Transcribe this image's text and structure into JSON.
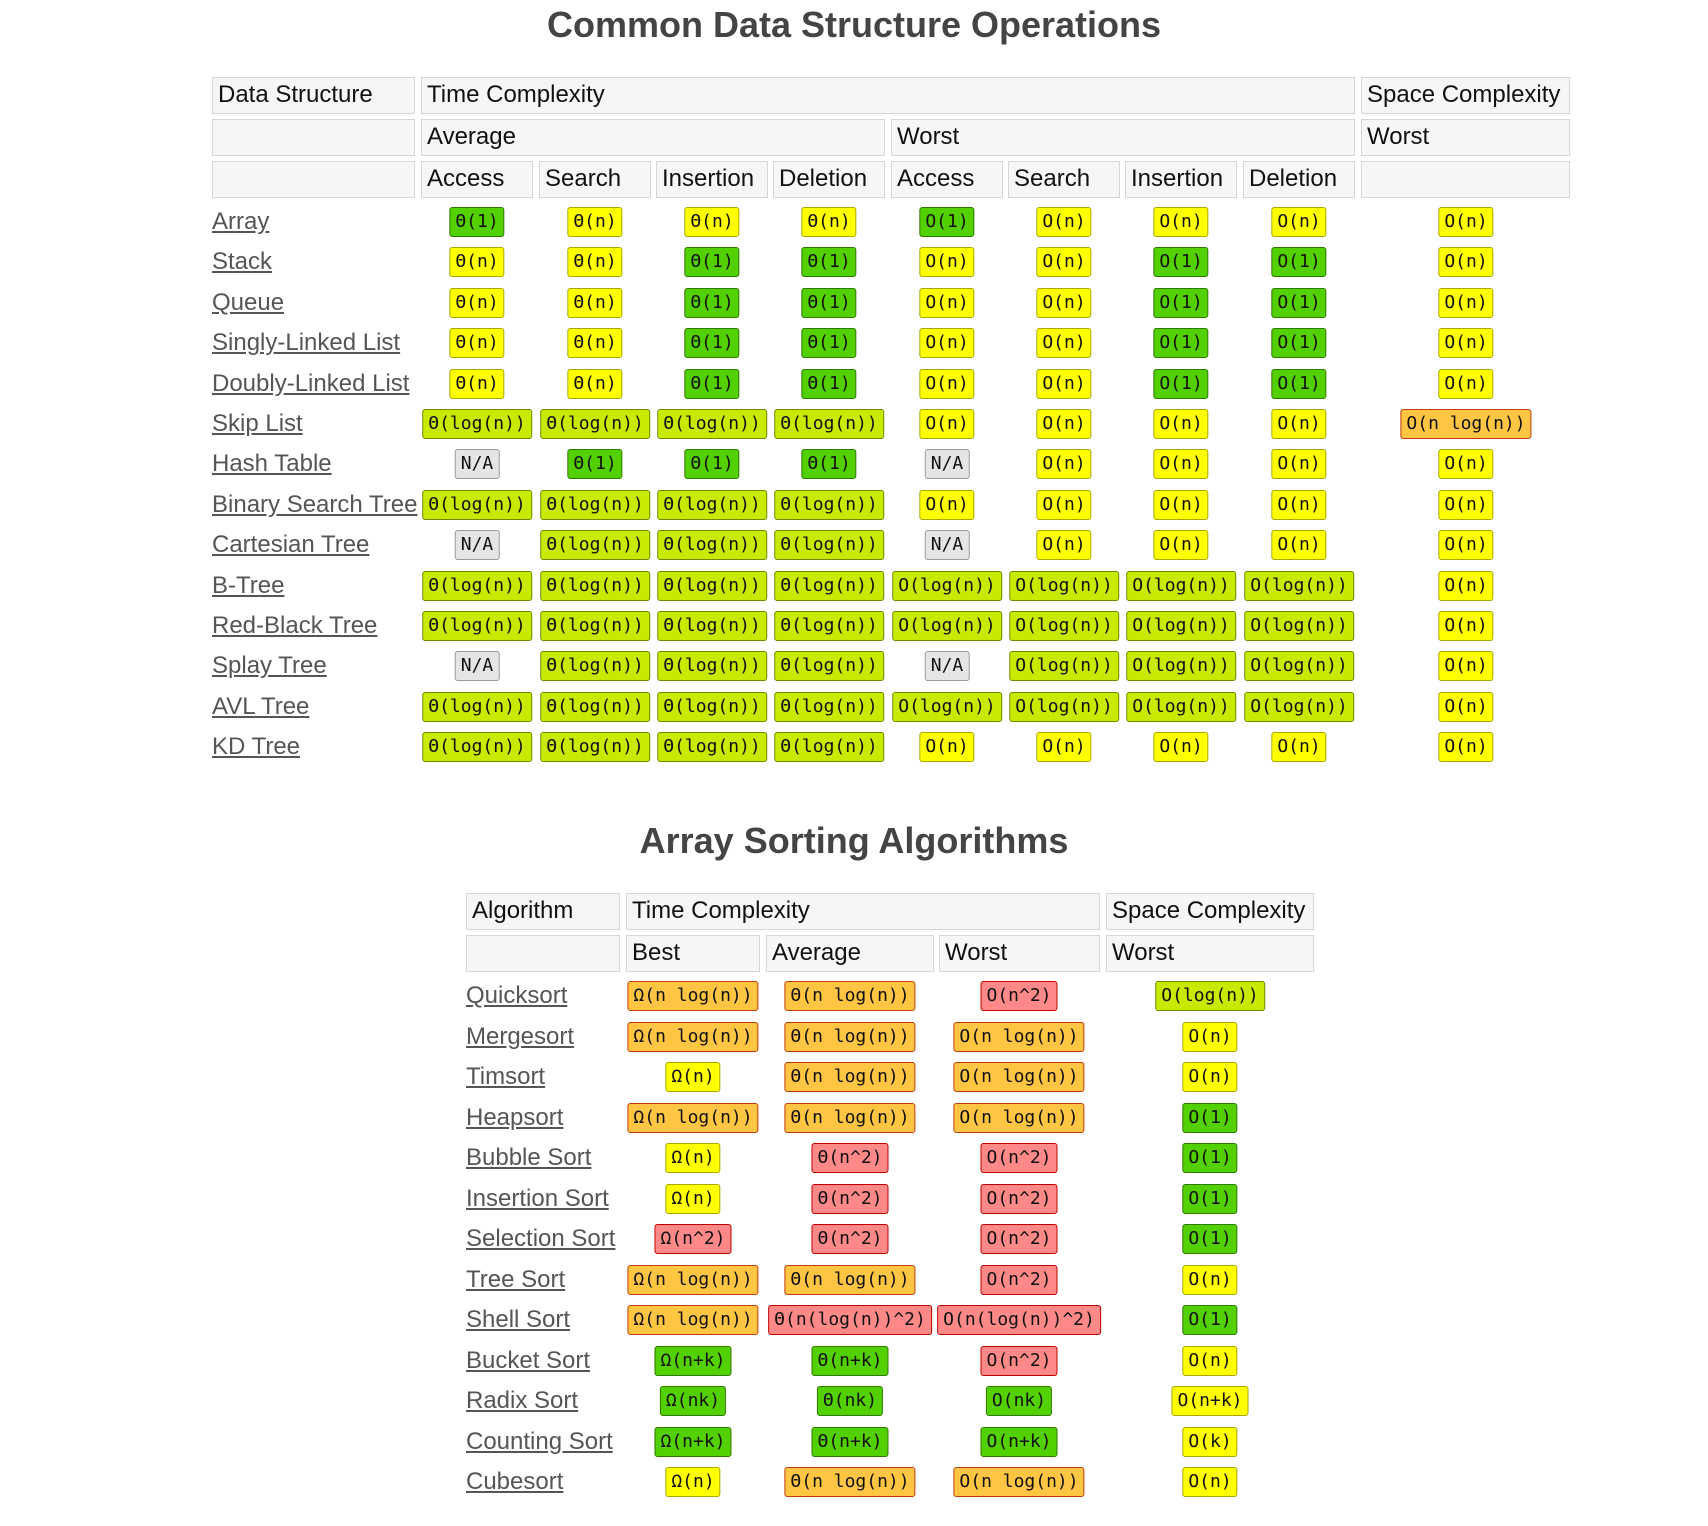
{
  "ds_table": {
    "title": "Common Data Structure Operations",
    "header": {
      "data_structure": "Data Structure",
      "time_complexity": "Time Complexity",
      "space_complexity": "Space Complexity",
      "average": "Average",
      "worst": "Worst",
      "space_worst": "Worst",
      "ops": [
        "Access",
        "Search",
        "Insertion",
        "Deletion",
        "Access",
        "Search",
        "Insertion",
        "Deletion"
      ]
    },
    "rows": [
      {
        "name": "Array",
        "cells": [
          [
            "Θ(1)",
            "good"
          ],
          [
            "Θ(n)",
            "yellow"
          ],
          [
            "Θ(n)",
            "yellow"
          ],
          [
            "Θ(n)",
            "yellow"
          ],
          [
            "O(1)",
            "good"
          ],
          [
            "O(n)",
            "yellow"
          ],
          [
            "O(n)",
            "yellow"
          ],
          [
            "O(n)",
            "yellow"
          ],
          [
            "O(n)",
            "yellow"
          ]
        ]
      },
      {
        "name": "Stack",
        "cells": [
          [
            "Θ(n)",
            "yellow"
          ],
          [
            "Θ(n)",
            "yellow"
          ],
          [
            "Θ(1)",
            "good"
          ],
          [
            "Θ(1)",
            "good"
          ],
          [
            "O(n)",
            "yellow"
          ],
          [
            "O(n)",
            "yellow"
          ],
          [
            "O(1)",
            "good"
          ],
          [
            "O(1)",
            "good"
          ],
          [
            "O(n)",
            "yellow"
          ]
        ]
      },
      {
        "name": "Queue",
        "cells": [
          [
            "Θ(n)",
            "yellow"
          ],
          [
            "Θ(n)",
            "yellow"
          ],
          [
            "Θ(1)",
            "good"
          ],
          [
            "Θ(1)",
            "good"
          ],
          [
            "O(n)",
            "yellow"
          ],
          [
            "O(n)",
            "yellow"
          ],
          [
            "O(1)",
            "good"
          ],
          [
            "O(1)",
            "good"
          ],
          [
            "O(n)",
            "yellow"
          ]
        ]
      },
      {
        "name": "Singly-Linked List",
        "cells": [
          [
            "Θ(n)",
            "yellow"
          ],
          [
            "Θ(n)",
            "yellow"
          ],
          [
            "Θ(1)",
            "good"
          ],
          [
            "Θ(1)",
            "good"
          ],
          [
            "O(n)",
            "yellow"
          ],
          [
            "O(n)",
            "yellow"
          ],
          [
            "O(1)",
            "good"
          ],
          [
            "O(1)",
            "good"
          ],
          [
            "O(n)",
            "yellow"
          ]
        ]
      },
      {
        "name": "Doubly-Linked List",
        "cells": [
          [
            "Θ(n)",
            "yellow"
          ],
          [
            "Θ(n)",
            "yellow"
          ],
          [
            "Θ(1)",
            "good"
          ],
          [
            "Θ(1)",
            "good"
          ],
          [
            "O(n)",
            "yellow"
          ],
          [
            "O(n)",
            "yellow"
          ],
          [
            "O(1)",
            "good"
          ],
          [
            "O(1)",
            "good"
          ],
          [
            "O(n)",
            "yellow"
          ]
        ]
      },
      {
        "name": "Skip List",
        "cells": [
          [
            "Θ(log(n))",
            "fair"
          ],
          [
            "Θ(log(n))",
            "fair"
          ],
          [
            "Θ(log(n))",
            "fair"
          ],
          [
            "Θ(log(n))",
            "fair"
          ],
          [
            "O(n)",
            "yellow"
          ],
          [
            "O(n)",
            "yellow"
          ],
          [
            "O(n)",
            "yellow"
          ],
          [
            "O(n)",
            "yellow"
          ],
          [
            "O(n log(n))",
            "bad"
          ]
        ]
      },
      {
        "name": "Hash Table",
        "cells": [
          [
            "N/A",
            "gray"
          ],
          [
            "Θ(1)",
            "good"
          ],
          [
            "Θ(1)",
            "good"
          ],
          [
            "Θ(1)",
            "good"
          ],
          [
            "N/A",
            "gray"
          ],
          [
            "O(n)",
            "yellow"
          ],
          [
            "O(n)",
            "yellow"
          ],
          [
            "O(n)",
            "yellow"
          ],
          [
            "O(n)",
            "yellow"
          ]
        ]
      },
      {
        "name": "Binary Search Tree",
        "cells": [
          [
            "Θ(log(n))",
            "fair"
          ],
          [
            "Θ(log(n))",
            "fair"
          ],
          [
            "Θ(log(n))",
            "fair"
          ],
          [
            "Θ(log(n))",
            "fair"
          ],
          [
            "O(n)",
            "yellow"
          ],
          [
            "O(n)",
            "yellow"
          ],
          [
            "O(n)",
            "yellow"
          ],
          [
            "O(n)",
            "yellow"
          ],
          [
            "O(n)",
            "yellow"
          ]
        ]
      },
      {
        "name": "Cartesian Tree",
        "cells": [
          [
            "N/A",
            "gray"
          ],
          [
            "Θ(log(n))",
            "fair"
          ],
          [
            "Θ(log(n))",
            "fair"
          ],
          [
            "Θ(log(n))",
            "fair"
          ],
          [
            "N/A",
            "gray"
          ],
          [
            "O(n)",
            "yellow"
          ],
          [
            "O(n)",
            "yellow"
          ],
          [
            "O(n)",
            "yellow"
          ],
          [
            "O(n)",
            "yellow"
          ]
        ]
      },
      {
        "name": "B-Tree",
        "cells": [
          [
            "Θ(log(n))",
            "fair"
          ],
          [
            "Θ(log(n))",
            "fair"
          ],
          [
            "Θ(log(n))",
            "fair"
          ],
          [
            "Θ(log(n))",
            "fair"
          ],
          [
            "O(log(n))",
            "fair"
          ],
          [
            "O(log(n))",
            "fair"
          ],
          [
            "O(log(n))",
            "fair"
          ],
          [
            "O(log(n))",
            "fair"
          ],
          [
            "O(n)",
            "yellow"
          ]
        ]
      },
      {
        "name": "Red-Black Tree",
        "cells": [
          [
            "Θ(log(n))",
            "fair"
          ],
          [
            "Θ(log(n))",
            "fair"
          ],
          [
            "Θ(log(n))",
            "fair"
          ],
          [
            "Θ(log(n))",
            "fair"
          ],
          [
            "O(log(n))",
            "fair"
          ],
          [
            "O(log(n))",
            "fair"
          ],
          [
            "O(log(n))",
            "fair"
          ],
          [
            "O(log(n))",
            "fair"
          ],
          [
            "O(n)",
            "yellow"
          ]
        ]
      },
      {
        "name": "Splay Tree",
        "cells": [
          [
            "N/A",
            "gray"
          ],
          [
            "Θ(log(n))",
            "fair"
          ],
          [
            "Θ(log(n))",
            "fair"
          ],
          [
            "Θ(log(n))",
            "fair"
          ],
          [
            "N/A",
            "gray"
          ],
          [
            "O(log(n))",
            "fair"
          ],
          [
            "O(log(n))",
            "fair"
          ],
          [
            "O(log(n))",
            "fair"
          ],
          [
            "O(n)",
            "yellow"
          ]
        ]
      },
      {
        "name": "AVL Tree",
        "cells": [
          [
            "Θ(log(n))",
            "fair"
          ],
          [
            "Θ(log(n))",
            "fair"
          ],
          [
            "Θ(log(n))",
            "fair"
          ],
          [
            "Θ(log(n))",
            "fair"
          ],
          [
            "O(log(n))",
            "fair"
          ],
          [
            "O(log(n))",
            "fair"
          ],
          [
            "O(log(n))",
            "fair"
          ],
          [
            "O(log(n))",
            "fair"
          ],
          [
            "O(n)",
            "yellow"
          ]
        ]
      },
      {
        "name": "KD Tree",
        "cells": [
          [
            "Θ(log(n))",
            "fair"
          ],
          [
            "Θ(log(n))",
            "fair"
          ],
          [
            "Θ(log(n))",
            "fair"
          ],
          [
            "Θ(log(n))",
            "fair"
          ],
          [
            "O(n)",
            "yellow"
          ],
          [
            "O(n)",
            "yellow"
          ],
          [
            "O(n)",
            "yellow"
          ],
          [
            "O(n)",
            "yellow"
          ],
          [
            "O(n)",
            "yellow"
          ]
        ]
      }
    ]
  },
  "sort_table": {
    "title": "Array Sorting Algorithms",
    "header": {
      "algorithm": "Algorithm",
      "time_complexity": "Time Complexity",
      "space_complexity": "Space Complexity",
      "best": "Best",
      "average": "Average",
      "worst": "Worst",
      "space_worst": "Worst"
    },
    "rows": [
      {
        "name": "Quicksort",
        "cells": [
          [
            "Ω(n log(n))",
            "bad"
          ],
          [
            "Θ(n log(n))",
            "bad"
          ],
          [
            "O(n^2)",
            "horrible"
          ],
          [
            "O(log(n))",
            "fair"
          ]
        ]
      },
      {
        "name": "Mergesort",
        "cells": [
          [
            "Ω(n log(n))",
            "bad"
          ],
          [
            "Θ(n log(n))",
            "bad"
          ],
          [
            "O(n log(n))",
            "bad"
          ],
          [
            "O(n)",
            "yellow"
          ]
        ]
      },
      {
        "name": "Timsort",
        "cells": [
          [
            "Ω(n)",
            "yellow"
          ],
          [
            "Θ(n log(n))",
            "bad"
          ],
          [
            "O(n log(n))",
            "bad"
          ],
          [
            "O(n)",
            "yellow"
          ]
        ]
      },
      {
        "name": "Heapsort",
        "cells": [
          [
            "Ω(n log(n))",
            "bad"
          ],
          [
            "Θ(n log(n))",
            "bad"
          ],
          [
            "O(n log(n))",
            "bad"
          ],
          [
            "O(1)",
            "good"
          ]
        ]
      },
      {
        "name": "Bubble Sort",
        "cells": [
          [
            "Ω(n)",
            "yellow"
          ],
          [
            "Θ(n^2)",
            "horrible"
          ],
          [
            "O(n^2)",
            "horrible"
          ],
          [
            "O(1)",
            "good"
          ]
        ]
      },
      {
        "name": "Insertion Sort",
        "cells": [
          [
            "Ω(n)",
            "yellow"
          ],
          [
            "Θ(n^2)",
            "horrible"
          ],
          [
            "O(n^2)",
            "horrible"
          ],
          [
            "O(1)",
            "good"
          ]
        ]
      },
      {
        "name": "Selection Sort",
        "cells": [
          [
            "Ω(n^2)",
            "horrible"
          ],
          [
            "Θ(n^2)",
            "horrible"
          ],
          [
            "O(n^2)",
            "horrible"
          ],
          [
            "O(1)",
            "good"
          ]
        ]
      },
      {
        "name": "Tree Sort",
        "cells": [
          [
            "Ω(n log(n))",
            "bad"
          ],
          [
            "Θ(n log(n))",
            "bad"
          ],
          [
            "O(n^2)",
            "horrible"
          ],
          [
            "O(n)",
            "yellow"
          ]
        ]
      },
      {
        "name": "Shell Sort",
        "cells": [
          [
            "Ω(n log(n))",
            "bad"
          ],
          [
            "Θ(n(log(n))^2)",
            "horrible"
          ],
          [
            "O(n(log(n))^2)",
            "horrible"
          ],
          [
            "O(1)",
            "good"
          ]
        ]
      },
      {
        "name": "Bucket Sort",
        "cells": [
          [
            "Ω(n+k)",
            "good"
          ],
          [
            "Θ(n+k)",
            "good"
          ],
          [
            "O(n^2)",
            "horrible"
          ],
          [
            "O(n)",
            "yellow"
          ]
        ]
      },
      {
        "name": "Radix Sort",
        "cells": [
          [
            "Ω(nk)",
            "good"
          ],
          [
            "Θ(nk)",
            "good"
          ],
          [
            "O(nk)",
            "good"
          ],
          [
            "O(n+k)",
            "yellow"
          ]
        ]
      },
      {
        "name": "Counting Sort",
        "cells": [
          [
            "Ω(n+k)",
            "good"
          ],
          [
            "Θ(n+k)",
            "good"
          ],
          [
            "O(n+k)",
            "good"
          ],
          [
            "O(k)",
            "yellow"
          ]
        ]
      },
      {
        "name": "Cubesort",
        "cells": [
          [
            "Ω(n)",
            "yellow"
          ],
          [
            "Θ(n log(n))",
            "bad"
          ],
          [
            "O(n log(n))",
            "bad"
          ],
          [
            "O(n)",
            "yellow"
          ]
        ]
      }
    ]
  }
}
